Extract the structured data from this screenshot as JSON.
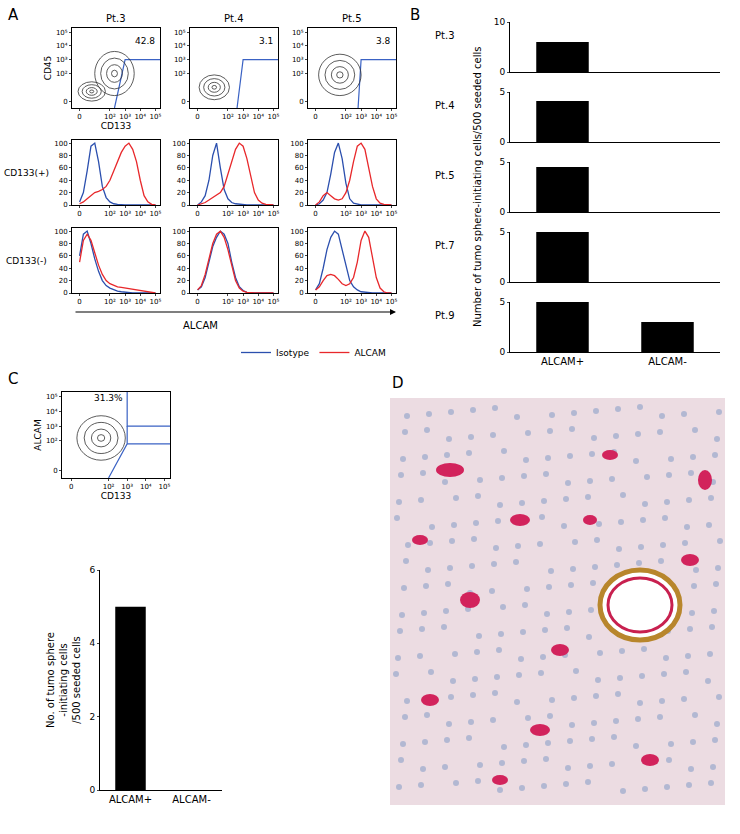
{
  "chart_data": [
    {
      "type": "contour",
      "panel": "A",
      "title": "Pt.3",
      "x_label": "CD133",
      "y_label": "CD45",
      "xlim": [
        -0.5,
        5.3
      ],
      "ylim": [
        -0.5,
        5.3
      ],
      "xticks": [
        0,
        {
          "value": 2,
          "label": "10²"
        },
        {
          "value": 3,
          "label": "10³"
        },
        {
          "value": 4,
          "label": "10⁴"
        },
        {
          "value": 5,
          "label": "10⁵"
        }
      ],
      "yticks": [
        0,
        {
          "value": 2,
          "label": "10²"
        },
        {
          "value": 3,
          "label": "10³"
        },
        {
          "value": 4,
          "label": "10⁴"
        },
        {
          "value": 5,
          "label": "10⁵"
        }
      ],
      "populations": [
        {
          "x": 0.8,
          "y": 0.7,
          "rx": 0.9,
          "ry": 0.7
        },
        {
          "x": 2.3,
          "y": 2.0,
          "rx": 1.3,
          "ry": 1.6
        }
      ],
      "gates": [
        [
          [
            2.3,
            -0.5
          ],
          [
            3.0,
            3.0
          ],
          [
            5.3,
            3.0
          ]
        ]
      ],
      "gate_label": "42.8"
    },
    {
      "type": "contour",
      "title": "Pt.4",
      "xlim": [
        -0.5,
        5.3
      ],
      "ylim": [
        -0.5,
        5.3
      ],
      "xticks": [
        0,
        {
          "value": 2,
          "label": "10²"
        },
        {
          "value": 3,
          "label": "10³"
        },
        {
          "value": 4,
          "label": "10⁴"
        },
        {
          "value": 5,
          "label": "10⁵"
        }
      ],
      "yticks": [
        0,
        {
          "value": 2,
          "label": "10²"
        },
        {
          "value": 3,
          "label": "10³"
        },
        {
          "value": 4,
          "label": "10⁴"
        },
        {
          "value": 5,
          "label": "10⁵"
        }
      ],
      "populations": [
        {
          "x": 1.1,
          "y": 1.0,
          "rx": 1.0,
          "ry": 0.9
        }
      ],
      "gates": [
        [
          [
            2.6,
            -0.5
          ],
          [
            3.0,
            3.0
          ],
          [
            5.3,
            3.0
          ]
        ]
      ],
      "gate_label": "3.1"
    },
    {
      "type": "contour",
      "title": "Pt.5",
      "xlim": [
        -0.5,
        5.3
      ],
      "ylim": [
        -0.5,
        5.3
      ],
      "xticks": [
        0,
        {
          "value": 2,
          "label": "10²"
        },
        {
          "value": 3,
          "label": "10³"
        },
        {
          "value": 4,
          "label": "10⁴"
        },
        {
          "value": 5,
          "label": "10⁵"
        }
      ],
      "yticks": [
        0,
        {
          "value": 2,
          "label": "10²"
        },
        {
          "value": 3,
          "label": "10³"
        },
        {
          "value": 4,
          "label": "10⁴"
        },
        {
          "value": 5,
          "label": "10⁵"
        }
      ],
      "populations": [
        {
          "x": 1.6,
          "y": 1.9,
          "rx": 1.4,
          "ry": 1.5
        }
      ],
      "gates": [
        [
          [
            2.8,
            -0.5
          ],
          [
            3.0,
            3.0
          ],
          [
            5.3,
            3.0
          ]
        ]
      ],
      "gate_label": "3.8"
    },
    {
      "type": "line",
      "row_label": "CD133(+)",
      "x": [
        0,
        0.25,
        0.5,
        0.75,
        1,
        1.25,
        1.5,
        1.75,
        2,
        2.25,
        2.5,
        2.75,
        3,
        3.25,
        3.5,
        3.75,
        4,
        4.25,
        4.5,
        4.75,
        5
      ],
      "xlim": [
        -0.5,
        5.3
      ],
      "ylim": [
        0,
        105
      ],
      "xticks": [
        0,
        {
          "value": 2,
          "label": "10²"
        },
        {
          "value": 3,
          "label": "10³"
        },
        {
          "value": 4,
          "label": "10⁴"
        },
        {
          "value": 5,
          "label": "10⁵"
        }
      ],
      "yticks": [
        0,
        20,
        40,
        60,
        80,
        100
      ],
      "series": [
        {
          "name": "Isotype",
          "color": "#2b4fae",
          "values": [
            5,
            20,
            55,
            95,
            100,
            70,
            30,
            12,
            5,
            2,
            1,
            0,
            0,
            0,
            0,
            0,
            0,
            0,
            0,
            0,
            0
          ]
        },
        {
          "name": "ALCAM",
          "color": "#e8282b",
          "values": [
            2,
            5,
            10,
            15,
            20,
            22,
            25,
            30,
            40,
            55,
            70,
            85,
            95,
            100,
            90,
            70,
            40,
            15,
            5,
            1,
            0
          ]
        }
      ]
    },
    {
      "type": "line",
      "x": [
        0,
        0.25,
        0.5,
        0.75,
        1,
        1.25,
        1.5,
        1.75,
        2,
        2.25,
        2.5,
        2.75,
        3,
        3.25,
        3.5,
        3.75,
        4,
        4.25,
        4.5,
        4.75,
        5
      ],
      "xlim": [
        -0.5,
        5.3
      ],
      "ylim": [
        0,
        105
      ],
      "xticks": [
        0,
        {
          "value": 2,
          "label": "10²"
        },
        {
          "value": 3,
          "label": "10³"
        },
        {
          "value": 4,
          "label": "10⁴"
        },
        {
          "value": 5,
          "label": "10⁵"
        }
      ],
      "yticks": [
        0,
        20,
        40,
        60,
        80,
        100
      ],
      "series": [
        {
          "name": "Isotype",
          "color": "#2b4fae",
          "values": [
            0,
            5,
            15,
            40,
            80,
            100,
            60,
            25,
            10,
            4,
            2,
            1,
            0,
            0,
            0,
            0,
            0,
            0,
            0,
            0,
            0
          ]
        },
        {
          "name": "ALCAM",
          "color": "#e8282b",
          "values": [
            0,
            2,
            4,
            8,
            12,
            15,
            20,
            30,
            50,
            70,
            90,
            100,
            95,
            75,
            45,
            20,
            8,
            3,
            1,
            0,
            0
          ]
        }
      ]
    },
    {
      "type": "line",
      "x": [
        0,
        0.25,
        0.5,
        0.75,
        1,
        1.25,
        1.5,
        1.75,
        2,
        2.25,
        2.5,
        2.75,
        3,
        3.25,
        3.5,
        3.75,
        4,
        4.25,
        4.5,
        4.75,
        5
      ],
      "xlim": [
        -0.5,
        5.3
      ],
      "ylim": [
        0,
        105
      ],
      "xticks": [
        0,
        {
          "value": 2,
          "label": "10²"
        },
        {
          "value": 3,
          "label": "10³"
        },
        {
          "value": 4,
          "label": "10⁴"
        },
        {
          "value": 5,
          "label": "10⁵"
        }
      ],
      "yticks": [
        0,
        20,
        40,
        60,
        80,
        100
      ],
      "series": [
        {
          "name": "Isotype",
          "color": "#2b4fae",
          "values": [
            0,
            2,
            8,
            20,
            50,
            85,
            100,
            75,
            35,
            10,
            3,
            1,
            0,
            0,
            0,
            0,
            0,
            0,
            0,
            0,
            0
          ]
        },
        {
          "name": "ALCAM",
          "color": "#e8282b",
          "values": [
            0,
            5,
            15,
            20,
            15,
            10,
            8,
            10,
            20,
            40,
            70,
            95,
            100,
            90,
            60,
            30,
            10,
            3,
            1,
            0,
            0
          ]
        }
      ]
    },
    {
      "type": "line",
      "row_label": "CD133(-)",
      "x_label": "ALCAM",
      "x": [
        0,
        0.25,
        0.5,
        0.75,
        1,
        1.25,
        1.5,
        1.75,
        2,
        2.25,
        2.5,
        2.75,
        3,
        3.25,
        3.5,
        3.75,
        4,
        4.25,
        4.5,
        4.75,
        5
      ],
      "xlim": [
        -0.5,
        5.3
      ],
      "ylim": [
        0,
        105
      ],
      "xticks": [
        0,
        {
          "value": 2,
          "label": "10²"
        },
        {
          "value": 3,
          "label": "10³"
        },
        {
          "value": 4,
          "label": "10⁴"
        },
        {
          "value": 5,
          "label": "10⁵"
        }
      ],
      "yticks": [
        0,
        20,
        40,
        60,
        80,
        100
      ],
      "series": [
        {
          "name": "Isotype",
          "color": "#2b4fae",
          "values": [
            60,
            95,
            100,
            80,
            55,
            35,
            20,
            12,
            8,
            5,
            3,
            2,
            1,
            0,
            0,
            0,
            0,
            0,
            0,
            0,
            0
          ]
        },
        {
          "name": "ALCAM",
          "color": "#e8282b",
          "values": [
            50,
            85,
            95,
            85,
            65,
            45,
            30,
            20,
            15,
            12,
            10,
            9,
            8,
            7,
            5,
            4,
            3,
            2,
            1,
            0,
            0
          ]
        }
      ]
    },
    {
      "type": "line",
      "x": [
        0,
        0.25,
        0.5,
        0.75,
        1,
        1.25,
        1.5,
        1.75,
        2,
        2.25,
        2.5,
        2.75,
        3,
        3.25,
        3.5,
        3.75,
        4,
        4.25,
        4.5,
        4.75,
        5
      ],
      "xlim": [
        -0.5,
        5.3
      ],
      "ylim": [
        0,
        105
      ],
      "xticks": [
        0,
        {
          "value": 2,
          "label": "10²"
        },
        {
          "value": 3,
          "label": "10³"
        },
        {
          "value": 4,
          "label": "10⁴"
        },
        {
          "value": 5,
          "label": "10⁵"
        }
      ],
      "yticks": [
        0,
        20,
        40,
        60,
        80,
        100
      ],
      "series": [
        {
          "name": "Isotype",
          "color": "#2b4fae",
          "values": [
            5,
            10,
            25,
            50,
            75,
            90,
            100,
            95,
            80,
            50,
            25,
            10,
            4,
            1,
            0,
            0,
            0,
            0,
            0,
            0,
            0
          ]
        },
        {
          "name": "ALCAM",
          "color": "#e8282b",
          "values": [
            5,
            12,
            30,
            55,
            80,
            95,
            100,
            90,
            70,
            45,
            20,
            8,
            3,
            1,
            0,
            0,
            0,
            0,
            0,
            0,
            0
          ]
        }
      ]
    },
    {
      "type": "line",
      "x": [
        0,
        0.25,
        0.5,
        0.75,
        1,
        1.25,
        1.5,
        1.75,
        2,
        2.25,
        2.5,
        2.75,
        3,
        3.25,
        3.5,
        3.75,
        4,
        4.25,
        4.5,
        4.75,
        5
      ],
      "xlim": [
        -0.5,
        5.3
      ],
      "ylim": [
        0,
        105
      ],
      "xticks": [
        0,
        {
          "value": 2,
          "label": "10²"
        },
        {
          "value": 3,
          "label": "10³"
        },
        {
          "value": 4,
          "label": "10⁴"
        },
        {
          "value": 5,
          "label": "10⁵"
        }
      ],
      "yticks": [
        0,
        20,
        40,
        60,
        80,
        100
      ],
      "series": [
        {
          "name": "Isotype",
          "color": "#2b4fae",
          "values": [
            5,
            15,
            40,
            70,
            90,
            100,
            95,
            70,
            40,
            20,
            10,
            5,
            2,
            1,
            0,
            0,
            0,
            0,
            0,
            0,
            0
          ]
        },
        {
          "name": "ALCAM",
          "color": "#e8282b",
          "values": [
            5,
            10,
            20,
            28,
            30,
            28,
            22,
            15,
            12,
            15,
            25,
            50,
            85,
            100,
            90,
            60,
            25,
            8,
            2,
            0,
            0
          ]
        }
      ]
    },
    {
      "type": "bar",
      "panel": "B",
      "title": "Pt.3",
      "y_label": "Number of tumo sphere-initiating cells/500 seeded cells",
      "categories": [
        "ALCAM+",
        "ALCAM-"
      ],
      "values": [
        6,
        0
      ],
      "color": "#000000",
      "ylim": [
        0,
        10
      ],
      "yticks": [
        0,
        10
      ],
      "tick_labels": "y"
    },
    {
      "type": "bar",
      "title": "Pt.4",
      "categories": [
        "ALCAM+",
        "ALCAM-"
      ],
      "values": [
        4.1,
        0
      ],
      "color": "#000000",
      "ylim": [
        0,
        5
      ],
      "yticks": [
        0,
        5
      ],
      "tick_labels": "y"
    },
    {
      "type": "bar",
      "title": "Pt.5",
      "categories": [
        "ALCAM+",
        "ALCAM-"
      ],
      "values": [
        4.5,
        0
      ],
      "color": "#000000",
      "ylim": [
        0,
        5
      ],
      "yticks": [
        0,
        5
      ],
      "tick_labels": "y"
    },
    {
      "type": "bar",
      "title": "Pt.7",
      "categories": [
        "ALCAM+",
        "ALCAM-"
      ],
      "values": [
        5,
        0
      ],
      "color": "#000000",
      "ylim": [
        0,
        5
      ],
      "yticks": [
        0,
        5
      ],
      "tick_labels": "y"
    },
    {
      "type": "bar",
      "title": "Pt.9",
      "categories": [
        "ALCAM+",
        "ALCAM-"
      ],
      "values": [
        5,
        3
      ],
      "color": "#000000",
      "ylim": [
        0,
        5
      ],
      "yticks": [
        0,
        5
      ]
    },
    {
      "type": "contour",
      "panel": "C",
      "x_label": "CD133",
      "y_label": "ALCAM",
      "xlim": [
        -0.5,
        5.3
      ],
      "ylim": [
        -0.5,
        5.3
      ],
      "xticks": [
        0,
        {
          "value": 2,
          "label": "10²"
        },
        {
          "value": 3,
          "label": "10³"
        },
        {
          "value": 4,
          "label": "10⁴"
        },
        {
          "value": 5,
          "label": "10⁵"
        }
      ],
      "yticks": [
        0,
        {
          "value": 2,
          "label": "10²"
        },
        {
          "value": 3,
          "label": "10³"
        },
        {
          "value": 4,
          "label": "10⁴"
        },
        {
          "value": 5,
          "label": "10⁵"
        }
      ],
      "populations": [
        {
          "x": 1.6,
          "y": 2.2,
          "rx": 1.3,
          "ry": 1.5
        }
      ],
      "gates": [
        [
          [
            3.0,
            5.3
          ],
          [
            3.0,
            3.0
          ],
          [
            5.3,
            3.0
          ]
        ],
        [
          [
            2.0,
            -0.5
          ],
          [
            3.0,
            1.8
          ],
          [
            3.0,
            3.0
          ]
        ],
        [
          [
            3.0,
            1.8
          ],
          [
            5.3,
            1.8
          ]
        ]
      ],
      "gate_label": "31.3%"
    },
    {
      "type": "bar",
      "y_label": "No. of tumo sphere\n-initiating cells\n/500 seeded cells",
      "categories": [
        "ALCAM+",
        "ALCAM-"
      ],
      "values": [
        5,
        0
      ],
      "color": "#000000",
      "ylim": [
        0,
        6
      ],
      "yticks": [
        0,
        2,
        4,
        6
      ]
    },
    {
      "type": "image",
      "panel": "D"
    }
  ]
}
